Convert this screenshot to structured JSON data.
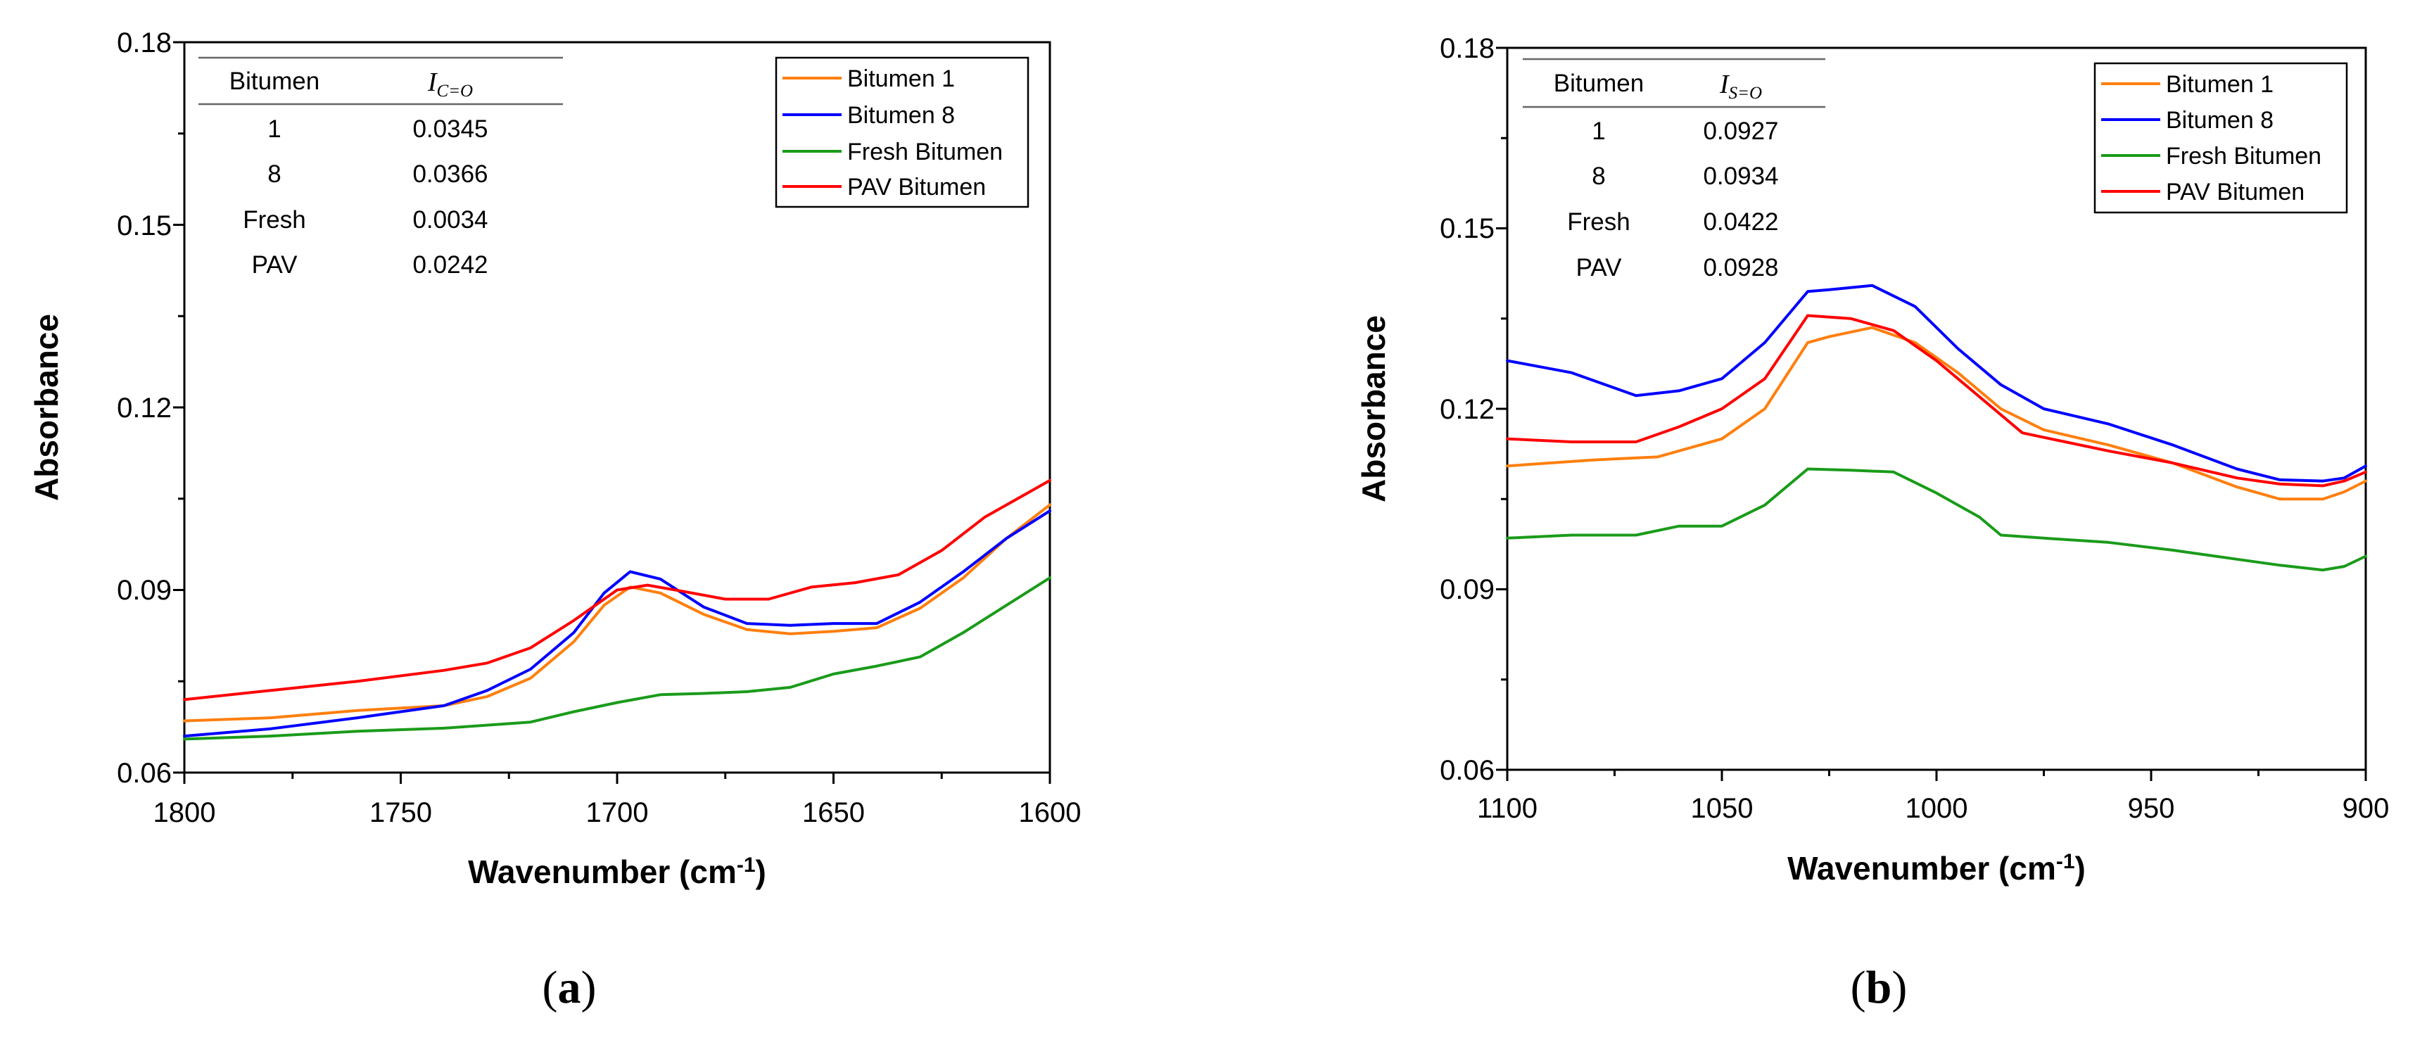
{
  "figure": {
    "panels": [
      {
        "letter_open": "(",
        "letter": "a",
        "letter_close": ")",
        "xlabel": "Wavenumber (cm",
        "xlabel_sup": "-1",
        "xlabel_close": ")",
        "ylabel": "Absorbance",
        "legend_items": [
          "Bitumen 1",
          "Bitumen 8",
          "Fresh Bitumen",
          "PAV Bitumen"
        ],
        "inset_table": {
          "header_col1": "Bitumen",
          "header_col2_base": "I",
          "header_col2_sub": "C=O",
          "rows": [
            {
              "name": "1",
              "value": "0.0345"
            },
            {
              "name": "8",
              "value": "0.0366"
            },
            {
              "name": "Fresh",
              "value": "0.0034"
            },
            {
              "name": "PAV",
              "value": "0.0242"
            }
          ]
        }
      },
      {
        "letter_open": "(",
        "letter": "b",
        "letter_close": ")",
        "xlabel": "Wavenumber (cm",
        "xlabel_sup": "-1",
        "xlabel_close": ")",
        "ylabel": "Absorbance",
        "legend_items": [
          "Bitumen 1",
          "Bitumen 8",
          "Fresh Bitumen",
          "PAV Bitumen"
        ],
        "inset_table": {
          "header_col1": "Bitumen",
          "header_col2_base": "I",
          "header_col2_sub": "S=O",
          "rows": [
            {
              "name": "1",
              "value": "0.0927"
            },
            {
              "name": "8",
              "value": "0.0934"
            },
            {
              "name": "Fresh",
              "value": "0.0422"
            },
            {
              "name": "PAV",
              "value": "0.0928"
            }
          ]
        }
      }
    ]
  },
  "chart_data": [
    {
      "type": "line",
      "title": "",
      "xlabel": "Wavenumber (cm-1)",
      "ylabel": "Absorbance",
      "xlim": [
        1800,
        1600
      ],
      "ylim": [
        0.06,
        0.18
      ],
      "x_ticks": [
        "1800",
        "1750",
        "1700",
        "1650",
        "1600"
      ],
      "y_ticks": [
        "0.06",
        "0.09",
        "0.12",
        "0.15",
        "0.18"
      ],
      "legend": "top-right",
      "grid": false,
      "series": [
        {
          "name": "Bitumen 1",
          "color": "#ff7f0e",
          "points": [
            [
              1800,
              0.0685
            ],
            [
              1780,
              0.069
            ],
            [
              1760,
              0.0702
            ],
            [
              1740,
              0.071
            ],
            [
              1730,
              0.0725
            ],
            [
              1720,
              0.0755
            ],
            [
              1710,
              0.0815
            ],
            [
              1703,
              0.0875
            ],
            [
              1697,
              0.0905
            ],
            [
              1690,
              0.0895
            ],
            [
              1680,
              0.086
            ],
            [
              1670,
              0.0835
            ],
            [
              1660,
              0.0828
            ],
            [
              1650,
              0.0832
            ],
            [
              1640,
              0.0838
            ],
            [
              1630,
              0.087
            ],
            [
              1620,
              0.092
            ],
            [
              1610,
              0.0985
            ],
            [
              1600,
              0.104
            ]
          ]
        },
        {
          "name": "Bitumen 8",
          "color": "#0000ff",
          "points": [
            [
              1800,
              0.066
            ],
            [
              1780,
              0.0672
            ],
            [
              1760,
              0.069
            ],
            [
              1740,
              0.071
            ],
            [
              1730,
              0.0735
            ],
            [
              1720,
              0.077
            ],
            [
              1710,
              0.083
            ],
            [
              1703,
              0.0895
            ],
            [
              1697,
              0.093
            ],
            [
              1690,
              0.0918
            ],
            [
              1680,
              0.0872
            ],
            [
              1670,
              0.0845
            ],
            [
              1660,
              0.0842
            ],
            [
              1650,
              0.0845
            ],
            [
              1640,
              0.0845
            ],
            [
              1630,
              0.088
            ],
            [
              1620,
              0.093
            ],
            [
              1610,
              0.0985
            ],
            [
              1600,
              0.103
            ]
          ]
        },
        {
          "name": "Fresh Bitumen",
          "color": "#1a9b1a",
          "points": [
            [
              1800,
              0.0655
            ],
            [
              1780,
              0.066
            ],
            [
              1760,
              0.0668
            ],
            [
              1740,
              0.0673
            ],
            [
              1720,
              0.0683
            ],
            [
              1710,
              0.07
            ],
            [
              1700,
              0.0715
            ],
            [
              1690,
              0.0728
            ],
            [
              1680,
              0.073
            ],
            [
              1670,
              0.0733
            ],
            [
              1660,
              0.074
            ],
            [
              1650,
              0.0762
            ],
            [
              1640,
              0.0775
            ],
            [
              1630,
              0.079
            ],
            [
              1620,
              0.083
            ],
            [
              1610,
              0.0875
            ],
            [
              1600,
              0.092
            ]
          ]
        },
        {
          "name": "PAV Bitumen",
          "color": "#ff0000",
          "points": [
            [
              1800,
              0.072
            ],
            [
              1780,
              0.0735
            ],
            [
              1760,
              0.075
            ],
            [
              1740,
              0.0768
            ],
            [
              1730,
              0.078
            ],
            [
              1720,
              0.0805
            ],
            [
              1710,
              0.085
            ],
            [
              1700,
              0.09
            ],
            [
              1693,
              0.0908
            ],
            [
              1685,
              0.0898
            ],
            [
              1675,
              0.0885
            ],
            [
              1665,
              0.0885
            ],
            [
              1655,
              0.0905
            ],
            [
              1645,
              0.0912
            ],
            [
              1635,
              0.0925
            ],
            [
              1625,
              0.0965
            ],
            [
              1615,
              0.102
            ],
            [
              1605,
              0.106
            ],
            [
              1600,
              0.108
            ]
          ]
        }
      ]
    },
    {
      "type": "line",
      "title": "",
      "xlabel": "Wavenumber (cm-1)",
      "ylabel": "Absorbance",
      "xlim": [
        1100,
        900
      ],
      "ylim": [
        0.06,
        0.18
      ],
      "x_ticks": [
        "1100",
        "1050",
        "1000",
        "950",
        "900"
      ],
      "y_ticks": [
        "0.06",
        "0.09",
        "0.12",
        "0.15",
        "0.18"
      ],
      "legend": "top-right",
      "grid": false,
      "series": [
        {
          "name": "Bitumen 1",
          "color": "#ff7f0e",
          "points": [
            [
              1100,
              0.1105
            ],
            [
              1080,
              0.1115
            ],
            [
              1065,
              0.112
            ],
            [
              1050,
              0.115
            ],
            [
              1040,
              0.12
            ],
            [
              1030,
              0.131
            ],
            [
              1025,
              0.132
            ],
            [
              1015,
              0.1335
            ],
            [
              1005,
              0.131
            ],
            [
              995,
              0.126
            ],
            [
              985,
              0.12
            ],
            [
              975,
              0.1165
            ],
            [
              960,
              0.114
            ],
            [
              945,
              0.111
            ],
            [
              930,
              0.107
            ],
            [
              920,
              0.105
            ],
            [
              910,
              0.105
            ],
            [
              905,
              0.1062
            ],
            [
              900,
              0.108
            ]
          ]
        },
        {
          "name": "Bitumen 8",
          "color": "#0000ff",
          "points": [
            [
              1100,
              0.128
            ],
            [
              1085,
              0.126
            ],
            [
              1070,
              0.1222
            ],
            [
              1060,
              0.123
            ],
            [
              1050,
              0.125
            ],
            [
              1040,
              0.131
            ],
            [
              1030,
              0.1395
            ],
            [
              1025,
              0.1398
            ],
            [
              1015,
              0.1405
            ],
            [
              1005,
              0.137
            ],
            [
              995,
              0.13
            ],
            [
              985,
              0.124
            ],
            [
              975,
              0.12
            ],
            [
              960,
              0.1175
            ],
            [
              945,
              0.114
            ],
            [
              930,
              0.11
            ],
            [
              920,
              0.1082
            ],
            [
              910,
              0.108
            ],
            [
              905,
              0.1085
            ],
            [
              900,
              0.1105
            ]
          ]
        },
        {
          "name": "Fresh Bitumen",
          "color": "#1a9b1a",
          "points": [
            [
              1100,
              0.0985
            ],
            [
              1085,
              0.099
            ],
            [
              1070,
              0.099
            ],
            [
              1060,
              0.1005
            ],
            [
              1050,
              0.1005
            ],
            [
              1040,
              0.104
            ],
            [
              1030,
              0.11
            ],
            [
              1020,
              0.1098
            ],
            [
              1010,
              0.1095
            ],
            [
              1000,
              0.106
            ],
            [
              990,
              0.102
            ],
            [
              985,
              0.099
            ],
            [
              975,
              0.0985
            ],
            [
              960,
              0.0978
            ],
            [
              945,
              0.0965
            ],
            [
              930,
              0.095
            ],
            [
              920,
              0.094
            ],
            [
              910,
              0.0932
            ],
            [
              905,
              0.0938
            ],
            [
              900,
              0.0955
            ]
          ]
        },
        {
          "name": "PAV Bitumen",
          "color": "#ff0000",
          "points": [
            [
              1100,
              0.115
            ],
            [
              1085,
              0.1145
            ],
            [
              1070,
              0.1145
            ],
            [
              1060,
              0.117
            ],
            [
              1050,
              0.12
            ],
            [
              1040,
              0.125
            ],
            [
              1030,
              0.1355
            ],
            [
              1020,
              0.135
            ],
            [
              1010,
              0.133
            ],
            [
              1000,
              0.128
            ],
            [
              990,
              0.122
            ],
            [
              980,
              0.116
            ],
            [
              970,
              0.1145
            ],
            [
              960,
              0.113
            ],
            [
              945,
              0.111
            ],
            [
              930,
              0.1085
            ],
            [
              920,
              0.1075
            ],
            [
              910,
              0.1072
            ],
            [
              905,
              0.108
            ],
            [
              900,
              0.1095
            ]
          ]
        }
      ]
    }
  ]
}
